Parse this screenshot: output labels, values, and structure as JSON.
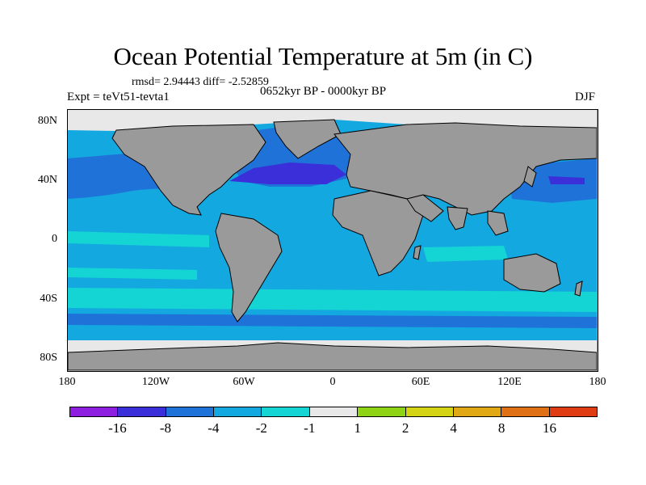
{
  "title": "Ocean Potential Temperature at 5m (in C)",
  "stats": "rmsd= 2.94443 diff= -2.52859",
  "experiment": "Expt = teVt51-tevta1",
  "period": "0652kyr BP - 0000kyr BP",
  "season": "DJF",
  "axes": {
    "y_ticks": [
      "80N",
      "40N",
      "0",
      "40S",
      "80S"
    ],
    "x_ticks": [
      "180",
      "120W",
      "60W",
      "0",
      "60E",
      "120E",
      "180"
    ]
  },
  "colorbar": {
    "colors": [
      "#8e1fe0",
      "#3a2fd9",
      "#1f73d8",
      "#14a8e0",
      "#14d4d4",
      "#e8e8e8",
      "#8fd414",
      "#d4d414",
      "#e0a814",
      "#e07014",
      "#e03c14"
    ],
    "labels": [
      "-16",
      "-8",
      "-4",
      "-2",
      "-1",
      "1",
      "2",
      "4",
      "8",
      "16"
    ]
  },
  "map_colors": {
    "land": "#9a9a9a",
    "ocean_main": "#14a8e0",
    "ocean_cool": "#1f73d8",
    "ocean_strong": "#3a2fd9",
    "ocean_warm": "#14d4d4",
    "sea_ice": "#e8e8e8"
  }
}
